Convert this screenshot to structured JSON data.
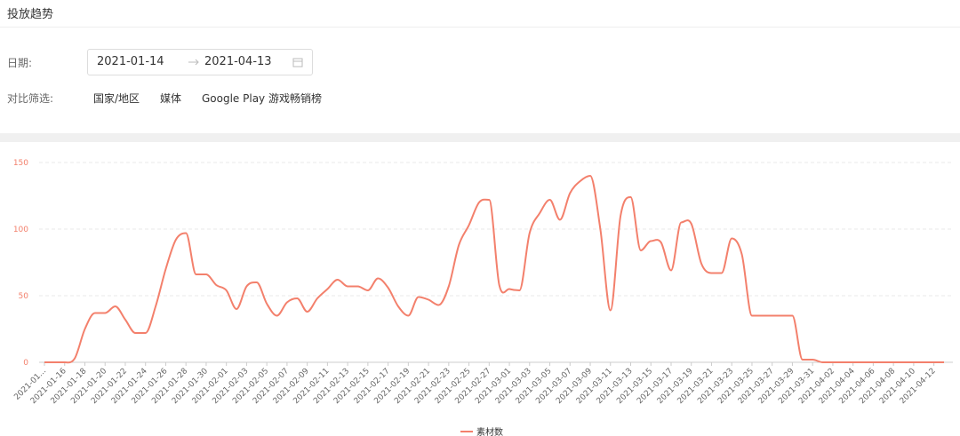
{
  "header": {
    "title": "投放趋势"
  },
  "filters": {
    "date_label": "日期:",
    "start_date": "2021-01-14",
    "end_date": "2021-04-13",
    "compare_label": "对比筛选:",
    "compare_options": [
      "国家/地区",
      "媒体",
      "Google Play 游戏畅销榜"
    ]
  },
  "chart_data": {
    "type": "line",
    "categories": [
      "2021-01...",
      null,
      "2021-01-16",
      null,
      "2021-01-18",
      null,
      "2021-01-20",
      null,
      "2021-01-22",
      null,
      "2021-01-24",
      null,
      "2021-01-26",
      null,
      "2021-01-28",
      null,
      "2021-01-30",
      null,
      "2021-02-01",
      null,
      "2021-02-03",
      null,
      "2021-02-05",
      null,
      "2021-02-07",
      null,
      "2021-02-09",
      null,
      "2021-02-11",
      null,
      "2021-02-13",
      null,
      "2021-02-15",
      null,
      "2021-02-17",
      null,
      "2021-02-19",
      null,
      "2021-02-21",
      null,
      "2021-02-23",
      null,
      "2021-02-25",
      null,
      "2021-02-27",
      null,
      "2021-03-01",
      null,
      "2021-03-03",
      null,
      "2021-03-05",
      null,
      "2021-03-07",
      null,
      "2021-03-09",
      null,
      "2021-03-11",
      null,
      "2021-03-13",
      null,
      "2021-03-15",
      null,
      "2021-03-17",
      null,
      "2021-03-19",
      null,
      "2021-03-21",
      null,
      "2021-03-23",
      null,
      "2021-03-25",
      null,
      "2021-03-27",
      null,
      "2021-03-29",
      null,
      "2021-03-31",
      null,
      "2021-04-02",
      null,
      "2021-04-04",
      null,
      "2021-04-06",
      null,
      "2021-04-08",
      null,
      "2021-04-10",
      null,
      "2021-04-12",
      null
    ],
    "series": [
      {
        "name": "素材数",
        "color": "#f3806c",
        "values": [
          0,
          0,
          0,
          3,
          25,
          37,
          37,
          42,
          32,
          22,
          22,
          42,
          70,
          92,
          97,
          66,
          66,
          58,
          54,
          40,
          57,
          60,
          44,
          35,
          45,
          48,
          38,
          48,
          55,
          62,
          57,
          57,
          54,
          63,
          56,
          42,
          35,
          49,
          47,
          43,
          57,
          88,
          103,
          120,
          122,
          58,
          55,
          54,
          97,
          112,
          122,
          107,
          127,
          136,
          140,
          100,
          39,
          110,
          124,
          84,
          91,
          90,
          69,
          105,
          104,
          74,
          67,
          67,
          93,
          81,
          35,
          35,
          35,
          35,
          35,
          2,
          2,
          0,
          0,
          0,
          0,
          0,
          0,
          0,
          0,
          0,
          0,
          0,
          0,
          0
        ]
      }
    ],
    "ylim": [
      0,
      150
    ],
    "yticks": [
      0,
      50,
      100,
      150
    ],
    "grid": true,
    "legend": "bottom"
  }
}
